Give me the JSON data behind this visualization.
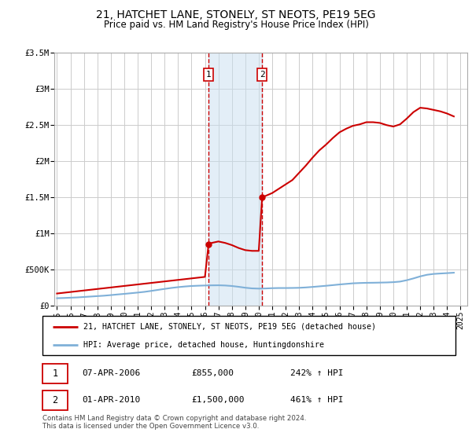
{
  "title": "21, HATCHET LANE, STONELY, ST NEOTS, PE19 5EG",
  "subtitle": "Price paid vs. HM Land Registry's House Price Index (HPI)",
  "ylim": [
    0,
    3500000
  ],
  "yticks": [
    0,
    500000,
    1000000,
    1500000,
    2000000,
    2500000,
    3000000,
    3500000
  ],
  "ytick_labels": [
    "£0",
    "£500K",
    "£1M",
    "£1.5M",
    "£2M",
    "£2.5M",
    "£3M",
    "£3.5M"
  ],
  "xlim_start": 1994.8,
  "xlim_end": 2025.5,
  "xtick_years": [
    1995,
    1996,
    1997,
    1998,
    1999,
    2000,
    2001,
    2002,
    2003,
    2004,
    2005,
    2006,
    2007,
    2008,
    2009,
    2010,
    2011,
    2012,
    2013,
    2014,
    2015,
    2016,
    2017,
    2018,
    2019,
    2020,
    2021,
    2022,
    2023,
    2024,
    2025
  ],
  "transaction1_x": 2006.27,
  "transaction1_y": 855000,
  "transaction2_x": 2010.25,
  "transaction2_y": 1500000,
  "vline1_x": 2006.27,
  "vline2_x": 2010.25,
  "shade_color": "#c8dff0",
  "shade_alpha": 0.5,
  "red_line_color": "#cc0000",
  "blue_line_color": "#7fb0d8",
  "grid_color": "#cccccc",
  "legend_line1": "21, HATCHET LANE, STONELY, ST NEOTS, PE19 5EG (detached house)",
  "legend_line2": "HPI: Average price, detached house, Huntingdonshire",
  "table_rows": [
    [
      "1",
      "07-APR-2006",
      "£855,000",
      "242% ↑ HPI"
    ],
    [
      "2",
      "01-APR-2010",
      "£1,500,000",
      "461% ↑ HPI"
    ]
  ],
  "footnote": "Contains HM Land Registry data © Crown copyright and database right 2024.\nThis data is licensed under the Open Government Licence v3.0.",
  "hpi_x": [
    1995.0,
    1995.5,
    1996.0,
    1996.5,
    1997.0,
    1997.5,
    1998.0,
    1998.5,
    1999.0,
    1999.5,
    2000.0,
    2000.5,
    2001.0,
    2001.5,
    2002.0,
    2002.5,
    2003.0,
    2003.5,
    2004.0,
    2004.5,
    2005.0,
    2005.5,
    2006.0,
    2006.5,
    2007.0,
    2007.5,
    2008.0,
    2008.5,
    2009.0,
    2009.5,
    2010.0,
    2010.5,
    2011.0,
    2011.5,
    2012.0,
    2012.5,
    2013.0,
    2013.5,
    2014.0,
    2014.5,
    2015.0,
    2015.5,
    2016.0,
    2016.5,
    2017.0,
    2017.5,
    2018.0,
    2018.5,
    2019.0,
    2019.5,
    2020.0,
    2020.5,
    2021.0,
    2021.5,
    2022.0,
    2022.5,
    2023.0,
    2023.5,
    2024.0,
    2024.5
  ],
  "hpi_y": [
    105000,
    108000,
    112000,
    116000,
    122000,
    128000,
    134000,
    140000,
    148000,
    157000,
    165000,
    174000,
    183000,
    193000,
    206000,
    220000,
    234000,
    247000,
    258000,
    267000,
    274000,
    278000,
    281000,
    283000,
    284000,
    281000,
    274000,
    263000,
    250000,
    241000,
    238000,
    240000,
    244000,
    246000,
    246000,
    247000,
    249000,
    254000,
    261000,
    269000,
    277000,
    286000,
    295000,
    303000,
    311000,
    315000,
    318000,
    319000,
    321000,
    323000,
    327000,
    335000,
    354000,
    379000,
    407000,
    429000,
    441000,
    447000,
    452000,
    458000
  ],
  "price_x": [
    1995.0,
    2006.0,
    2006.27,
    2006.5,
    2007.0,
    2007.5,
    2008.0,
    2008.5,
    2009.0,
    2009.5,
    2010.0,
    2010.25,
    2010.5,
    2011.0,
    2011.5,
    2012.0,
    2012.5,
    2013.0,
    2013.5,
    2014.0,
    2014.5,
    2015.0,
    2015.5,
    2016.0,
    2016.5,
    2017.0,
    2017.5,
    2018.0,
    2018.5,
    2019.0,
    2019.5,
    2020.0,
    2020.5,
    2021.0,
    2021.5,
    2022.0,
    2022.5,
    2023.0,
    2023.5,
    2024.0,
    2024.5
  ],
  "price_y": [
    170000,
    400000,
    855000,
    870000,
    890000,
    870000,
    840000,
    800000,
    770000,
    760000,
    760000,
    1500000,
    1520000,
    1560000,
    1620000,
    1680000,
    1740000,
    1840000,
    1940000,
    2050000,
    2150000,
    2230000,
    2320000,
    2400000,
    2450000,
    2490000,
    2510000,
    2540000,
    2540000,
    2530000,
    2500000,
    2480000,
    2510000,
    2590000,
    2680000,
    2740000,
    2730000,
    2710000,
    2690000,
    2660000,
    2620000
  ]
}
